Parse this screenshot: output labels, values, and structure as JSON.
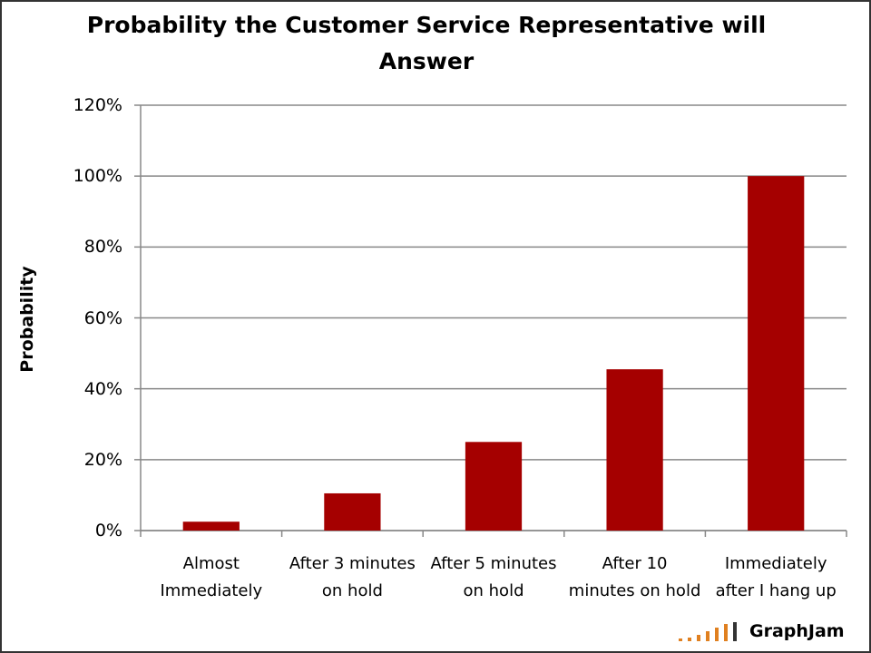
{
  "chart_data": {
    "type": "bar",
    "title": "Probability the Customer Service Representative will Answer",
    "y_label": "Probability",
    "categories": [
      "Almost Immediately",
      "After 3 minutes on hold",
      "After 5 minutes on hold",
      "After 10 minutes on hold",
      "Immediately after I hang up"
    ],
    "values": [
      2.5,
      10.5,
      25,
      45.5,
      100
    ],
    "color": "#a50000",
    "ylim": [
      0,
      120
    ],
    "yticks": [
      {
        "value": 0,
        "label": "0%"
      },
      {
        "value": 20,
        "label": "20%"
      },
      {
        "value": 40,
        "label": "40%"
      },
      {
        "value": 60,
        "label": "60%"
      },
      {
        "value": 80,
        "label": "80%"
      },
      {
        "value": 100,
        "label": "100%"
      },
      {
        "value": 120,
        "label": "120%"
      }
    ],
    "grid": true,
    "watermark": "GraphJam"
  }
}
